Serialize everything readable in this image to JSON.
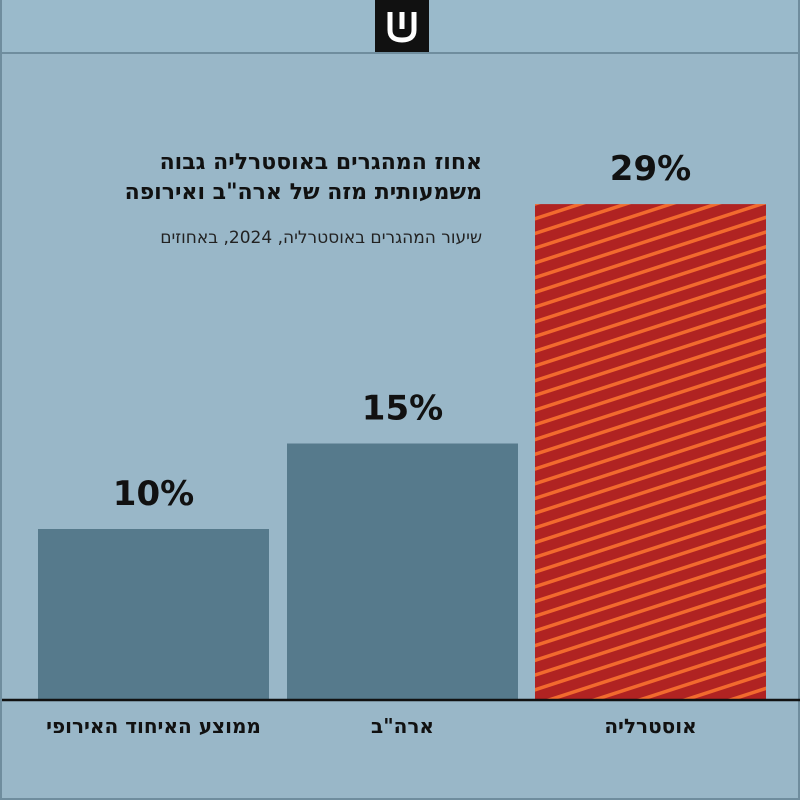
{
  "header": {
    "logo": "shin-logo-icon"
  },
  "chart_data": {
    "type": "bar",
    "title": "אחוז המהגרים באוסטרליה גבוה משמעותית מזה של ארה\"ב ואירופה",
    "title_lines": [
      "אחוז המהגרים באוסטרליה גבוה",
      "משמעותית מזה של ארה\"ב ואירופה"
    ],
    "subtitle": "שיעור המהגרים באוסטרליה, 2024, באחוזים",
    "categories": [
      "ממוצע האיחוד האירופי",
      "ארה\"ב",
      "אוסטרליה"
    ],
    "values": [
      10,
      15,
      29
    ],
    "value_labels": [
      "10%",
      "15%",
      "29%"
    ],
    "highlight": [
      false,
      false,
      true
    ],
    "ylim": [
      0,
      29
    ],
    "unit": "%",
    "grid": false,
    "legend": "none",
    "colors": {
      "bar": "#567A8C",
      "highlight_base": "#B02322",
      "highlight_stripe": "#F26A2E",
      "axis": "#111111",
      "background": "#99B7C8"
    }
  }
}
